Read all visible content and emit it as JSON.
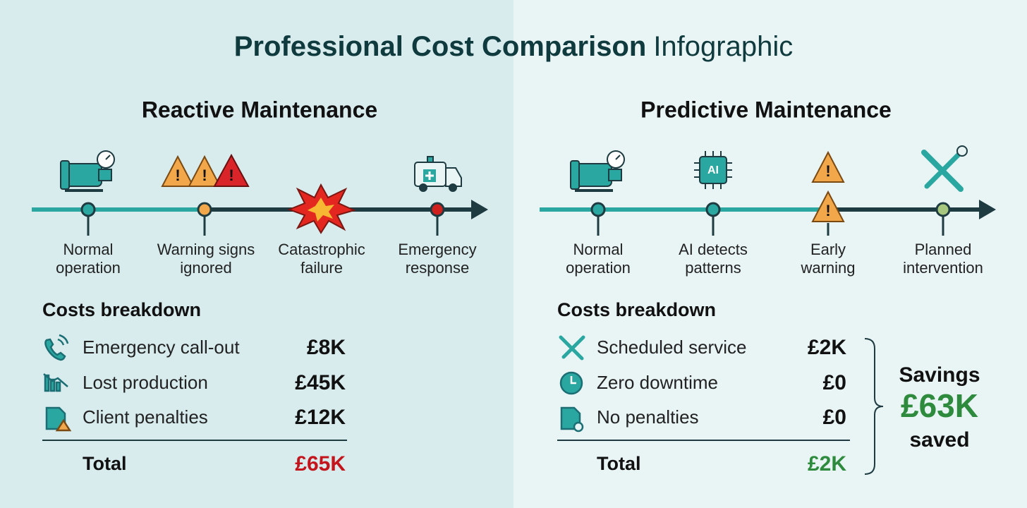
{
  "header": {
    "title_bold": "Professional Cost Comparison",
    "title_regular": "Infographic"
  },
  "panels": [
    {
      "heading": "Reactive Maintenance",
      "timeline": [
        {
          "lines": [
            "Normal",
            "operation"
          ]
        },
        {
          "lines": [
            "Warning signs",
            "ignored"
          ]
        },
        {
          "lines": [
            "Catastrophic",
            "failure"
          ]
        },
        {
          "lines": [
            "Emergency",
            "response"
          ]
        }
      ],
      "costs_heading": "Costs breakdown",
      "items": [
        {
          "label": "Emergency call-out",
          "amount": "£8K"
        },
        {
          "label": "Lost production",
          "amount": "£45K"
        },
        {
          "label": "Client penalties",
          "amount": "£12K"
        }
      ],
      "total_label": "Total",
      "total_amount": "£65K"
    },
    {
      "heading": "Predictive Maintenance",
      "timeline": [
        {
          "lines": [
            "Normal",
            "operation"
          ]
        },
        {
          "lines": [
            "AI detects",
            "patterns"
          ]
        },
        {
          "lines": [
            "Early",
            "warning"
          ]
        },
        {
          "lines": [
            "Planned",
            "intervention"
          ]
        }
      ],
      "costs_heading": "Costs breakdown",
      "items": [
        {
          "label": "Scheduled service",
          "amount": "£2K"
        },
        {
          "label": "Zero downtime",
          "amount": "£0"
        },
        {
          "label": "No penalties",
          "amount": "£0"
        }
      ],
      "total_label": "Total",
      "total_amount": "£2K"
    }
  ],
  "savings": {
    "label": "Savings",
    "amount": "£63K",
    "suffix": "saved"
  }
}
